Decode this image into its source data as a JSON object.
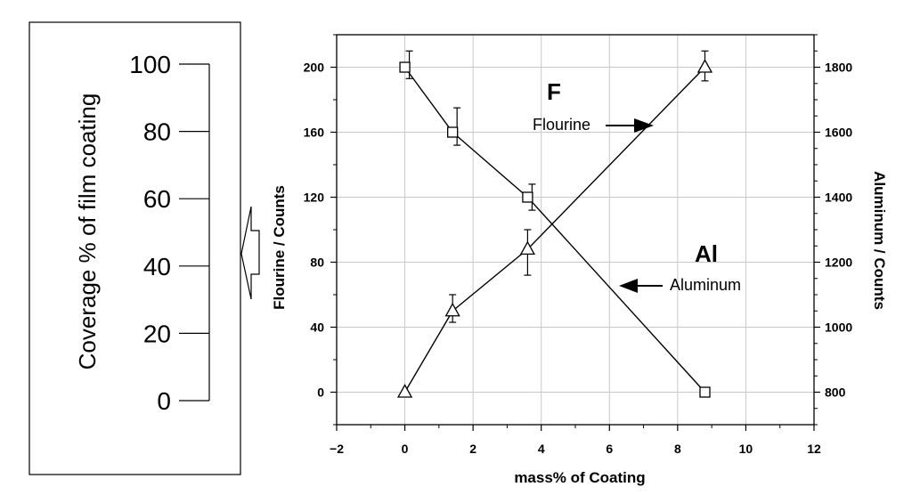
{
  "chart_data": {
    "type": "line",
    "xlabel": "mass% of Coating",
    "ylabel_left": "Flourine / Counts",
    "ylabel_right": "Aluminum / Counts",
    "xlim": [
      -2,
      12
    ],
    "xticks": [
      "−2",
      "0",
      "2",
      "4",
      "6",
      "8",
      "10",
      "12"
    ],
    "ylim_left": [
      -20,
      220
    ],
    "yticks_left": [
      "0",
      "40",
      "80",
      "120",
      "160",
      "200"
    ],
    "ylim_right": [
      700,
      1900
    ],
    "yticks_right": [
      "800",
      "1000",
      "1200",
      "1400",
      "1600",
      "1800"
    ],
    "grid": true,
    "series": [
      {
        "name": "Flourine",
        "marker": "square",
        "axis": "left",
        "x": [
          0,
          1.4,
          3.6,
          8.8
        ],
        "y": [
          200,
          160,
          120,
          0
        ],
        "err_low": [
          193,
          152,
          112,
          null
        ],
        "err_high": [
          210,
          175,
          128,
          null
        ]
      },
      {
        "name": "Aluminum",
        "marker": "triangle",
        "axis": "right",
        "x": [
          0,
          1.4,
          3.6,
          8.8
        ],
        "y": [
          800,
          1050,
          1240,
          1800
        ],
        "err_low": [
          null,
          1015,
          1160,
          1758
        ],
        "err_high": [
          null,
          1100,
          1300,
          1850
        ]
      }
    ],
    "annotations": {
      "f_label": "F",
      "al_label": "Al",
      "flourine_arrow_text": "Flourine",
      "aluminum_arrow_text": "Aluminum"
    },
    "coverage_scale": {
      "title": "Coverage % of film coating",
      "ticks": [
        "100",
        "80",
        "60",
        "40",
        "20",
        "0"
      ]
    }
  }
}
